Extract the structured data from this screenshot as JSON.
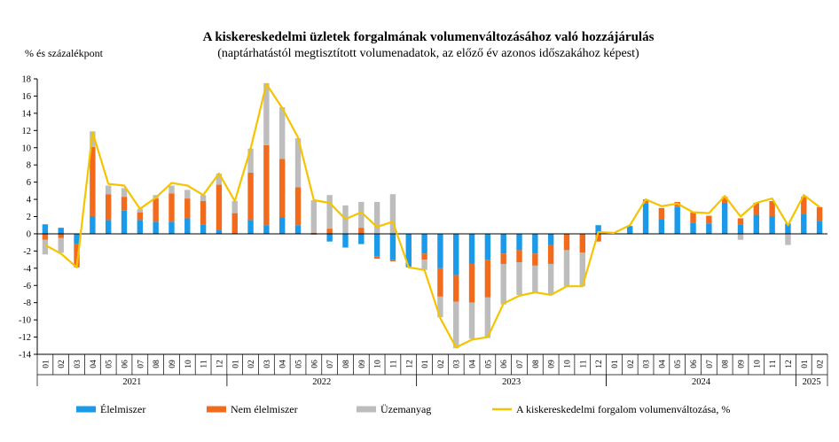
{
  "chart_data": {
    "type": "bar",
    "stacked": true,
    "title": "A kiskereskedelmi üzletek forgalmának volumenváltozásához való hozzájárulás",
    "subtitle": "(naptárhatástól megtisztított volumenadatok, az előző év azonos időszakához képest)",
    "ylabel": "% és százalékpont",
    "ylim": [
      -14,
      18
    ],
    "yticks": [
      -14,
      -12,
      -10,
      -8,
      -6,
      -4,
      -2,
      0,
      2,
      4,
      6,
      8,
      10,
      12,
      14,
      16,
      18
    ],
    "grid": false,
    "legend_position": "bottom",
    "categories": [
      "01",
      "02",
      "03",
      "04",
      "05",
      "06",
      "07",
      "08",
      "09",
      "10",
      "11",
      "12",
      "01",
      "02",
      "03",
      "04",
      "05",
      "06",
      "07",
      "08",
      "09",
      "10",
      "11",
      "12",
      "01",
      "02",
      "03",
      "04",
      "05",
      "06",
      "07",
      "08",
      "09",
      "10",
      "11",
      "12",
      "01",
      "02",
      "03",
      "04",
      "05",
      "06",
      "07",
      "08",
      "09",
      "10",
      "11",
      "12",
      "01",
      "02"
    ],
    "year_groups": [
      {
        "label": "2021",
        "start": 0,
        "count": 12
      },
      {
        "label": "2022",
        "start": 12,
        "count": 12
      },
      {
        "label": "2023",
        "start": 24,
        "count": 12
      },
      {
        "label": "2024",
        "start": 36,
        "count": 12
      },
      {
        "label": "2025",
        "start": 48,
        "count": 2
      }
    ],
    "series": [
      {
        "name": "Élelmiszer",
        "type": "bar",
        "color": "#1a9ae8",
        "values": [
          1.1,
          0.7,
          -1.2,
          2.0,
          1.6,
          2.7,
          1.6,
          1.4,
          1.4,
          1.8,
          1.1,
          0.4,
          0.0,
          1.6,
          1.0,
          1.9,
          1.0,
          0.1,
          -0.9,
          -1.6,
          -1.2,
          -2.6,
          -3.0,
          -3.8,
          -2.3,
          -4.0,
          -4.8,
          -3.5,
          -3.0,
          -2.3,
          -1.9,
          -2.3,
          -1.3,
          0.0,
          0.0,
          1.0,
          0.0,
          0.9,
          3.5,
          1.7,
          3.1,
          1.3,
          1.2,
          3.6,
          1.1,
          2.2,
          2.0,
          1.2,
          2.3,
          1.5
        ]
      },
      {
        "name": "Nem élelmiszer",
        "type": "bar",
        "color": "#f26b1d",
        "values": [
          -0.7,
          -0.5,
          -2.7,
          8.1,
          3.0,
          1.6,
          0.9,
          2.7,
          3.3,
          2.3,
          2.7,
          5.3,
          2.4,
          5.5,
          9.3,
          6.8,
          4.4,
          -0.1,
          0.6,
          0.0,
          0.7,
          -0.3,
          -0.2,
          -0.1,
          -0.7,
          -3.3,
          -3.1,
          -4.5,
          -4.4,
          -1.2,
          -1.4,
          -1.4,
          -2.2,
          -1.9,
          -2.2,
          -0.9,
          0.0,
          0.0,
          0.5,
          1.3,
          0.6,
          1.2,
          0.9,
          0.7,
          0.7,
          1.4,
          1.8,
          0.0,
          2.0,
          1.6
        ]
      },
      {
        "name": "Üzemanyag",
        "type": "bar",
        "color": "#bdbdbd",
        "values": [
          -1.7,
          -1.7,
          0.0,
          1.8,
          1.0,
          1.0,
          0.4,
          0.4,
          0.9,
          1.0,
          0.7,
          1.3,
          1.4,
          2.8,
          7.2,
          6.0,
          5.7,
          3.8,
          3.9,
          3.3,
          3.0,
          3.7,
          4.6,
          0.0,
          -1.2,
          -2.4,
          -5.4,
          -4.2,
          -4.7,
          -4.7,
          -3.8,
          -3.1,
          -3.6,
          -4.2,
          -3.9,
          0.0,
          0.0,
          0.0,
          0.0,
          0.0,
          0.0,
          0.0,
          0.0,
          0.0,
          -0.7,
          0.0,
          0.0,
          -1.3,
          0.0,
          0.0
        ]
      },
      {
        "name": "A kiskereskedelmi forgalom volumenváltozása, %",
        "type": "line",
        "color": "#f5c400",
        "values": [
          -1.3,
          -2.3,
          -3.9,
          11.8,
          5.8,
          5.6,
          2.9,
          4.2,
          5.9,
          5.6,
          4.5,
          7.0,
          3.8,
          9.9,
          17.4,
          14.6,
          11.2,
          3.9,
          3.6,
          1.7,
          2.5,
          0.8,
          1.4,
          -3.9,
          -4.2,
          -9.8,
          -13.2,
          -12.3,
          -12.0,
          -8.1,
          -7.2,
          -6.8,
          -7.1,
          -6.1,
          -6.1,
          0.2,
          0.1,
          1.0,
          4.0,
          3.2,
          3.5,
          2.5,
          2.4,
          4.4,
          2.0,
          3.6,
          4.1,
          1.0,
          4.5,
          3.1
        ]
      }
    ]
  }
}
